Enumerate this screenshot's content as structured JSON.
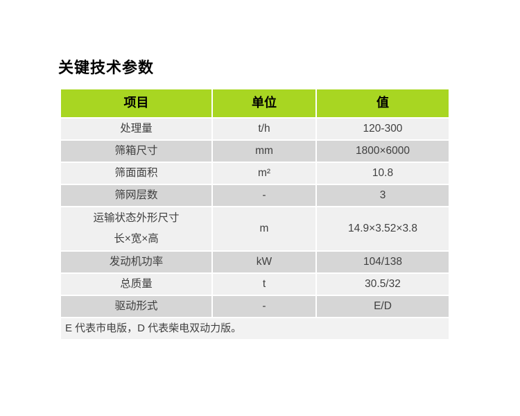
{
  "title": "关键技术参数",
  "table": {
    "headers": {
      "item": "项目",
      "unit": "单位",
      "value": "值"
    },
    "rows": [
      {
        "item": "处理量",
        "unit": "t/h",
        "value": "120-300",
        "shade": "light"
      },
      {
        "item": "筛箱尺寸",
        "unit": "mm",
        "value": "1800×6000",
        "shade": "dark"
      },
      {
        "item": "筛面面积",
        "unit": "m²",
        "value": "10.8",
        "shade": "light"
      },
      {
        "item": "筛网层数",
        "unit": "-",
        "value": "3",
        "shade": "dark"
      },
      {
        "item": "运输状态外形尺寸",
        "item2": "长×宽×高",
        "unit": "m",
        "value": "14.9×3.52×3.8",
        "shade": "light"
      },
      {
        "item": "发动机功率",
        "unit": "kW",
        "value": "104/138",
        "shade": "dark"
      },
      {
        "item": "总质量",
        "unit": "t",
        "value": "30.5/32",
        "shade": "light"
      },
      {
        "item": "驱动形式",
        "unit": "-",
        "value": "E/D",
        "shade": "dark"
      }
    ],
    "footnote": "E 代表市电版，D 代表柴电双动力版。"
  },
  "colors": {
    "page_bg": "#FFFFFF",
    "header_bg": "#A8D622",
    "row_light": "#F0F0F0",
    "row_dark": "#D6D6D6",
    "footnote_bg": "#F2F2F2",
    "header_text": "#000000",
    "body_text": "#3F3F3F",
    "title_text": "#000000"
  }
}
